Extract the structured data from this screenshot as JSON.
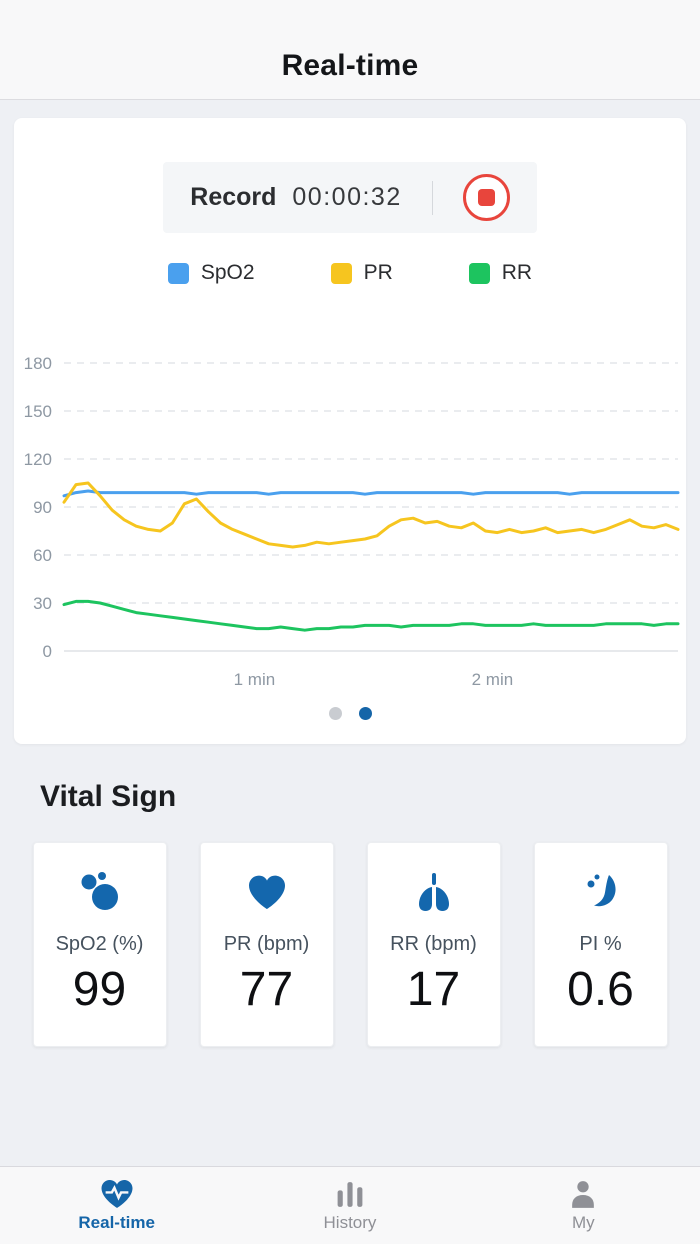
{
  "app": {
    "title": "Real-time"
  },
  "record": {
    "label": "Record",
    "time": "00:00:32",
    "stop_color": "#e8453c"
  },
  "legend": [
    {
      "label": "SpO2",
      "color": "#4aa0ee"
    },
    {
      "label": "PR",
      "color": "#f6c51f"
    },
    {
      "label": "RR",
      "color": "#1dc45f"
    }
  ],
  "chart_data": {
    "type": "line",
    "title": "",
    "xlabel": "",
    "ylabel": "",
    "ylim": [
      0,
      180
    ],
    "yticks": [
      0,
      30,
      60,
      90,
      120,
      150,
      180
    ],
    "grid": "dashed-horizontal",
    "legend_position": "top",
    "x_range_min": [
      0.2,
      2.78
    ],
    "xtick_values": [
      1,
      2
    ],
    "xtick_labels": [
      "1 min",
      "2 min"
    ],
    "series": [
      {
        "name": "SpO2",
        "color": "#4aa0ee",
        "values": [
          97,
          99,
          100,
          99,
          99,
          99,
          99,
          99,
          99,
          99,
          99,
          98,
          99,
          99,
          99,
          99,
          99,
          98,
          99,
          99,
          99,
          99,
          99,
          99,
          99,
          98,
          99,
          99,
          99,
          99,
          99,
          99,
          99,
          99,
          98,
          99,
          99,
          99,
          99,
          99,
          99,
          99,
          98,
          99,
          99,
          99,
          99,
          99,
          99,
          99,
          99,
          99
        ]
      },
      {
        "name": "PR",
        "color": "#f6c51f",
        "values": [
          93,
          104,
          105,
          97,
          88,
          82,
          78,
          76,
          75,
          80,
          92,
          95,
          87,
          80,
          76,
          73,
          70,
          67,
          66,
          65,
          66,
          68,
          67,
          68,
          69,
          70,
          72,
          78,
          82,
          83,
          80,
          81,
          78,
          77,
          80,
          75,
          74,
          76,
          74,
          75,
          77,
          74,
          75,
          76,
          74,
          76,
          79,
          82,
          78,
          77,
          79,
          76
        ]
      },
      {
        "name": "RR",
        "color": "#1dc45f",
        "values": [
          29,
          31,
          31,
          30,
          28,
          26,
          24,
          23,
          22,
          21,
          20,
          19,
          18,
          17,
          16,
          15,
          14,
          14,
          15,
          14,
          13,
          14,
          14,
          15,
          15,
          16,
          16,
          16,
          15,
          16,
          16,
          16,
          16,
          17,
          17,
          16,
          16,
          16,
          16,
          17,
          16,
          16,
          16,
          16,
          16,
          17,
          17,
          17,
          17,
          16,
          17,
          17
        ]
      }
    ],
    "pagination": {
      "count": 2,
      "active_index": 1,
      "active_color": "#1565a8",
      "inactive_color": "#c9ccd1"
    }
  },
  "vital_sign": {
    "title": "Vital Sign",
    "icon_color": "#1467ad",
    "cards": [
      {
        "label": "SpO2 (%)",
        "value": "99",
        "icon": "spo2-bubbles-icon"
      },
      {
        "label": "PR (bpm)",
        "value": "77",
        "icon": "heart-icon"
      },
      {
        "label": "RR (bpm)",
        "value": "17",
        "icon": "lungs-icon"
      },
      {
        "label": "PI %",
        "value": "0.6",
        "icon": "perfusion-icon"
      }
    ]
  },
  "tabbar": {
    "active_color": "#1565a8",
    "inactive_color": "#8f9096",
    "items": [
      {
        "label": "Real-time",
        "icon": "heart-pulse-icon",
        "active": true
      },
      {
        "label": "History",
        "icon": "history-bars-icon",
        "active": false
      },
      {
        "label": "My",
        "icon": "person-icon",
        "active": false
      }
    ]
  }
}
